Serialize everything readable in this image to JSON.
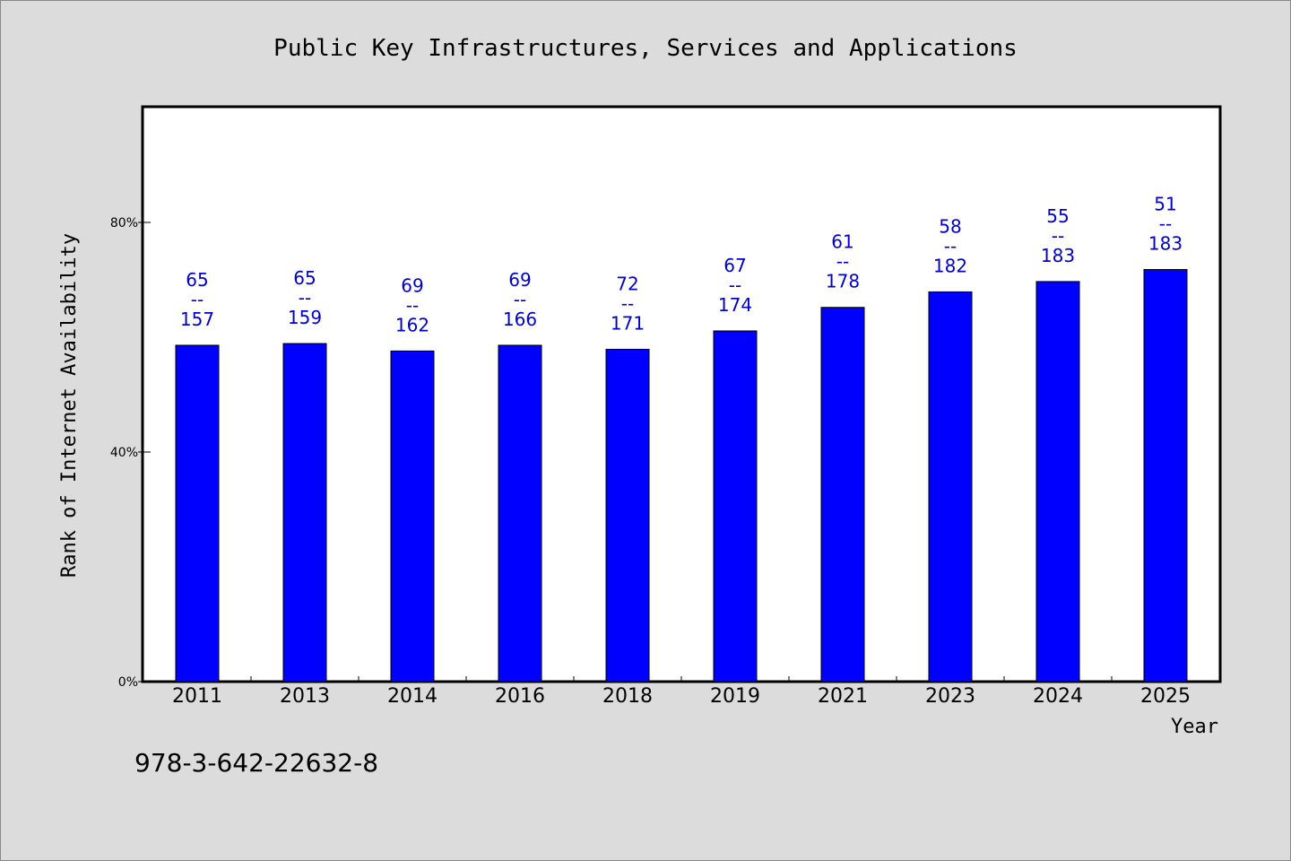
{
  "chart_data": {
    "type": "bar",
    "title": "Public Key Infrastructures, Services and Applications",
    "xlabel": "Year",
    "ylabel": "Rank of Internet Availability",
    "categories": [
      "2011",
      "2013",
      "2014",
      "2016",
      "2018",
      "2019",
      "2021",
      "2023",
      "2024",
      "2025"
    ],
    "values": [
      58.6,
      58.9,
      57.6,
      58.6,
      57.9,
      61.1,
      65.2,
      67.9,
      69.7,
      71.8
    ],
    "ranks": [
      "65",
      "65",
      "69",
      "69",
      "72",
      "67",
      "61",
      "58",
      "55",
      "51"
    ],
    "totals": [
      "157",
      "159",
      "162",
      "166",
      "171",
      "174",
      "178",
      "182",
      "183",
      "183"
    ],
    "separator": "--",
    "ylim": [
      0,
      100
    ],
    "yticks": [
      {
        "value": 0,
        "label": "0%"
      },
      {
        "value": 40,
        "label": "40%"
      },
      {
        "value": 80,
        "label": "80%"
      }
    ],
    "grid": false,
    "legend": "none",
    "colors": {
      "bar": "#0000ff",
      "label": "#0000cc",
      "plot_bg": "#ffffff",
      "page_bg": "#dcdcdc",
      "axis": "#000000"
    }
  },
  "footer": {
    "isbn": "978-3-642-22632-8"
  }
}
